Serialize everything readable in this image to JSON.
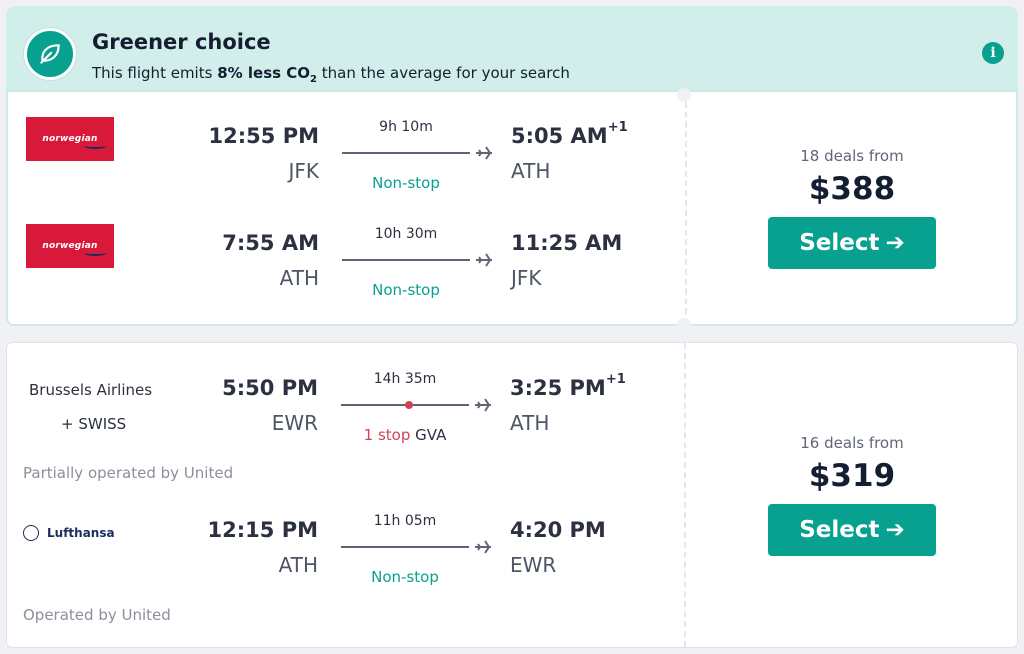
{
  "banner": {
    "title": "Greener choice",
    "text_prefix": "This flight emits ",
    "text_highlight": "8% less CO",
    "text_sub": "2",
    "text_suffix": " than the average for your search",
    "accent_color": "#08a18f",
    "background_color": "#d2eeea",
    "icons": {
      "leaf": "leaf-icon",
      "info": "info-icon"
    }
  },
  "results": [
    {
      "legs": [
        {
          "airline_logo": "norwegian",
          "dep_time": "12:55 PM",
          "dep_code": "JFK",
          "duration": "9h 10m",
          "arr_time": "5:05 AM",
          "arr_day_offset": "+1",
          "arr_code": "ATH",
          "stops": "Non-stop"
        },
        {
          "airline_logo": "norwegian",
          "dep_time": "7:55 AM",
          "dep_code": "ATH",
          "duration": "10h 30m",
          "arr_time": "11:25 AM",
          "arr_day_offset": "",
          "arr_code": "JFK",
          "stops": "Non-stop"
        }
      ],
      "deals": "18 deals from",
      "price": "$388",
      "select_label": "Select"
    },
    {
      "legs": [
        {
          "airline_name": "Brussels Airlines",
          "airline_name_2": "+ SWISS",
          "dep_time": "5:50 PM",
          "dep_code": "EWR",
          "duration": "14h 35m",
          "arr_time": "3:25 PM",
          "arr_day_offset": "+1",
          "arr_code": "ATH",
          "stops": "1 stop",
          "stop_airport": "GVA",
          "operated_by": "Partially operated by United"
        },
        {
          "airline_logo": "Lufthansa",
          "dep_time": "12:15 PM",
          "dep_code": "ATH",
          "duration": "11h 05m",
          "arr_time": "4:20 PM",
          "arr_day_offset": "",
          "arr_code": "EWR",
          "stops": "Non-stop",
          "operated_by": "Operated by United"
        }
      ],
      "deals": "16 deals from",
      "price": "$319",
      "select_label": "Select"
    }
  ],
  "colors": {
    "nonstop": "#08a18f",
    "stop": "#d1435b",
    "select_button": "#08a18f",
    "norwegian_red": "#d81939"
  }
}
